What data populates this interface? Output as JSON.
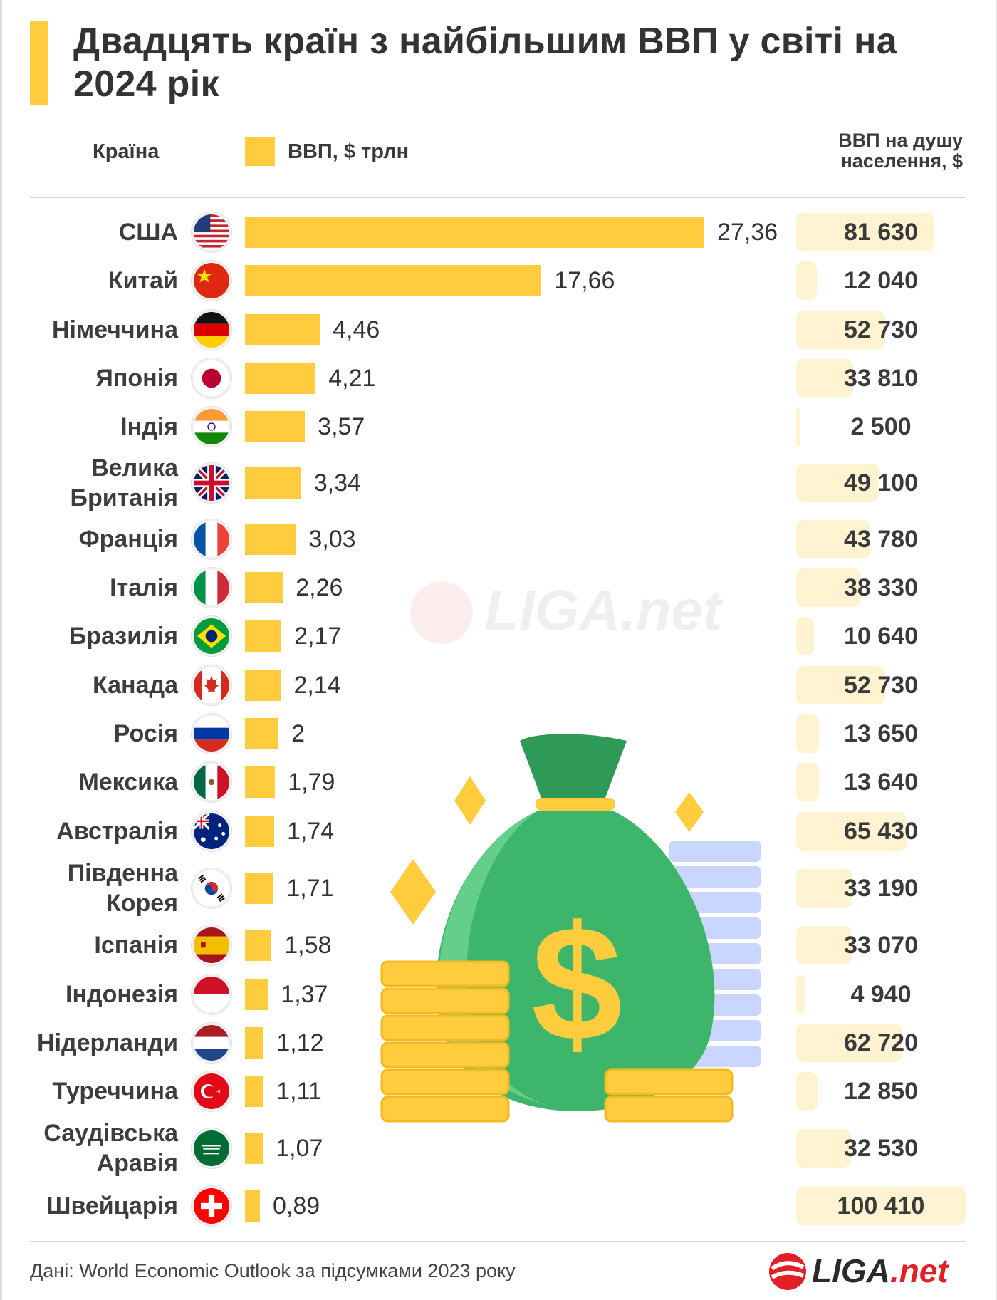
{
  "title": "Двадцять країн з найбільшим ВВП у світі на 2024 рік",
  "headers": {
    "country": "Країна",
    "gdp_legend": "ВВП, $ трлн",
    "per_capita_line1": "ВВП на душу",
    "per_capita_line2": "населення, $"
  },
  "colors": {
    "accent": "#ffcc3d",
    "per_capita_fill": "#fff3d2",
    "text": "#333333",
    "brand_red": "#e31e24"
  },
  "chart_data": {
    "type": "bar",
    "orientation": "horizontal",
    "title": "Двадцять країн з найбільшим ВВП у світі на 2024 рік",
    "xlabel": "ВВП, $ трлн",
    "ylabel": "Країна",
    "xlim": [
      0,
      27.36
    ],
    "grid": false,
    "legend": "top-left",
    "categories": [
      "США",
      "Китай",
      "Німеччина",
      "Японія",
      "Індія",
      "Велика Британія",
      "Франція",
      "Італія",
      "Бразилія",
      "Канада",
      "Росія",
      "Мексика",
      "Австралія",
      "Південна Корея",
      "Іспанія",
      "Індонезія",
      "Нідерланди",
      "Туреччина",
      "Саудівська Аравія",
      "Швейцарія"
    ],
    "category_lines": [
      [
        "США"
      ],
      [
        "Китай"
      ],
      [
        "Німеччина"
      ],
      [
        "Японія"
      ],
      [
        "Індія"
      ],
      [
        "Велика",
        "Британія"
      ],
      [
        "Франція"
      ],
      [
        "Італія"
      ],
      [
        "Бразилія"
      ],
      [
        "Канада"
      ],
      [
        "Росія"
      ],
      [
        "Мексика"
      ],
      [
        "Австралія"
      ],
      [
        "Південна",
        "Корея"
      ],
      [
        "Іспанія"
      ],
      [
        "Індонезія"
      ],
      [
        "Нідерланди"
      ],
      [
        "Туреччина"
      ],
      [
        "Саудівська",
        "Аравія"
      ],
      [
        "Швейцарія"
      ]
    ],
    "flags": [
      "us-flag-icon",
      "china-flag-icon",
      "germany-flag-icon",
      "japan-flag-icon",
      "india-flag-icon",
      "uk-flag-icon",
      "france-flag-icon",
      "italy-flag-icon",
      "brazil-flag-icon",
      "canada-flag-icon",
      "russia-flag-icon",
      "mexico-flag-icon",
      "australia-flag-icon",
      "south-korea-flag-icon",
      "spain-flag-icon",
      "indonesia-flag-icon",
      "netherlands-flag-icon",
      "turkey-flag-icon",
      "saudi-arabia-flag-icon",
      "switzerland-flag-icon"
    ],
    "series": [
      {
        "name": "ВВП, $ трлн",
        "values": [
          27.36,
          17.66,
          4.46,
          4.21,
          3.57,
          3.34,
          3.03,
          2.26,
          2.17,
          2.14,
          2,
          1.79,
          1.74,
          1.71,
          1.58,
          1.37,
          1.12,
          1.11,
          1.07,
          0.89
        ],
        "labels": [
          "27,36",
          "17,66",
          "4,46",
          "4,21",
          "3,57",
          "3,34",
          "3,03",
          "2,26",
          "2,17",
          "2,14",
          "2",
          "1,79",
          "1,74",
          "1,71",
          "1,58",
          "1,37",
          "1,12",
          "1,11",
          "1,07",
          "0,89"
        ]
      },
      {
        "name": "ВВП на душу населення, $",
        "values": [
          81630,
          12040,
          52730,
          33810,
          2500,
          49100,
          43780,
          38330,
          10640,
          52730,
          13650,
          13640,
          65430,
          33190,
          33070,
          4940,
          62720,
          12850,
          32530,
          100410
        ],
        "labels": [
          "81 630",
          "12 040",
          "52 730",
          "33 810",
          "2 500",
          "49 100",
          "43 780",
          "38 330",
          "10 640",
          "52 730",
          "13 650",
          "13 640",
          "65 430",
          "33 190",
          "33 070",
          "4 940",
          "62 720",
          "12 850",
          "32 530",
          "100 410"
        ]
      }
    ]
  },
  "footer": {
    "source": "Дані: World Economic Outlook за підсумками 2023 року",
    "logo_main": "LIGA",
    "logo_net": ".net"
  },
  "illustration": "money-bag-icon"
}
